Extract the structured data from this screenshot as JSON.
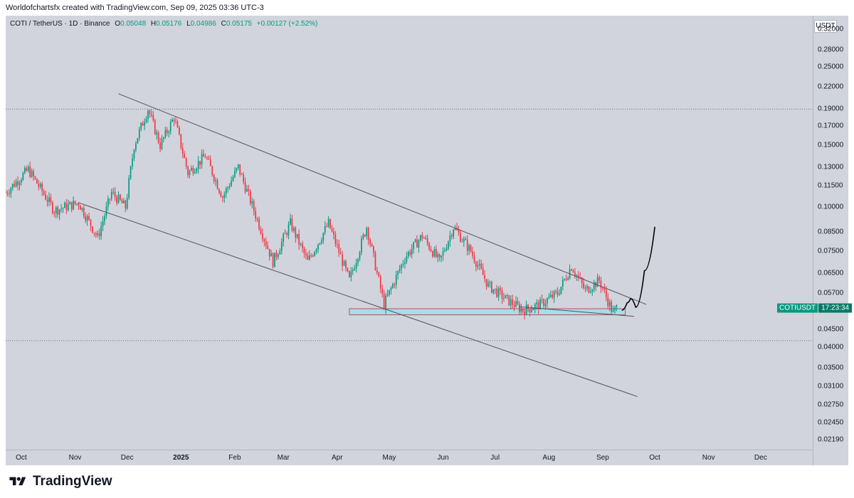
{
  "caption": "Worldofchartsfx created with TradingView.com, Sep 09, 2025 03:36 UTC-3",
  "brand": "TradingView",
  "colors": {
    "up": "#089981",
    "down": "#f23645",
    "background": "#d1d4dc",
    "zone": "#a9dde6"
  },
  "chart_data": {
    "type": "candlestick",
    "title": "COTI / TetherUS · 1D · Binance",
    "symbol_line": {
      "symbol": "COTI / TetherUS · 1D · Binance",
      "o_label": "O",
      "o": "0.05048",
      "h_label": "H",
      "h": "0.05176",
      "l_label": "L",
      "l": "0.04986",
      "c_label": "C",
      "c": "0.05175",
      "change": "+0.00127 (+2.52%)"
    },
    "currency": "USDT",
    "y_scale": "log",
    "ylim": [
      0.0205,
      0.35
    ],
    "y_ticks": [
      "0.32000",
      "0.28000",
      "0.25000",
      "0.22000",
      "0.19000",
      "0.17000",
      "0.15000",
      "0.13000",
      "0.11500",
      "0.10000",
      "0.08500",
      "0.07500",
      "0.06500",
      "0.05700",
      "0.04500",
      "0.04000",
      "0.03500",
      "0.03100",
      "0.02750",
      "0.02450",
      "0.02190"
    ],
    "x_ticks": [
      "Oct",
      "Nov",
      "Dec",
      "2025",
      "Feb",
      "Mar",
      "Apr",
      "May",
      "Jun",
      "Jul",
      "Aug",
      "Sep",
      "Oct",
      "Nov",
      "Dec"
    ],
    "x_range": [
      "2024-09-22",
      "2025-12-31"
    ],
    "anchors": [
      {
        "date": "2024-09-22",
        "price": 0.11
      },
      {
        "date": "2024-10-05",
        "price": 0.128
      },
      {
        "date": "2024-10-20",
        "price": 0.098
      },
      {
        "date": "2024-11-03",
        "price": 0.103
      },
      {
        "date": "2024-11-14",
        "price": 0.082
      },
      {
        "date": "2024-11-22",
        "price": 0.11
      },
      {
        "date": "2024-11-30",
        "price": 0.1
      },
      {
        "date": "2024-12-05",
        "price": 0.15
      },
      {
        "date": "2024-12-13",
        "price": 0.19
      },
      {
        "date": "2024-12-20",
        "price": 0.15
      },
      {
        "date": "2024-12-28",
        "price": 0.18
      },
      {
        "date": "2025-01-05",
        "price": 0.125
      },
      {
        "date": "2025-01-15",
        "price": 0.14
      },
      {
        "date": "2025-01-25",
        "price": 0.107
      },
      {
        "date": "2025-02-03",
        "price": 0.13
      },
      {
        "date": "2025-02-13",
        "price": 0.095
      },
      {
        "date": "2025-02-23",
        "price": 0.07
      },
      {
        "date": "2025-03-05",
        "price": 0.09
      },
      {
        "date": "2025-03-15",
        "price": 0.07
      },
      {
        "date": "2025-03-27",
        "price": 0.09
      },
      {
        "date": "2025-04-08",
        "price": 0.062
      },
      {
        "date": "2025-04-18",
        "price": 0.088
      },
      {
        "date": "2025-04-28",
        "price": 0.053
      },
      {
        "date": "2025-05-10",
        "price": 0.072
      },
      {
        "date": "2025-05-20",
        "price": 0.083
      },
      {
        "date": "2025-05-30",
        "price": 0.07
      },
      {
        "date": "2025-06-07",
        "price": 0.088
      },
      {
        "date": "2025-06-17",
        "price": 0.075
      },
      {
        "date": "2025-06-27",
        "price": 0.06
      },
      {
        "date": "2025-07-07",
        "price": 0.055
      },
      {
        "date": "2025-07-17",
        "price": 0.051
      },
      {
        "date": "2025-07-27",
        "price": 0.053
      },
      {
        "date": "2025-08-06",
        "price": 0.057
      },
      {
        "date": "2025-08-14",
        "price": 0.068
      },
      {
        "date": "2025-08-22",
        "price": 0.058
      },
      {
        "date": "2025-08-30",
        "price": 0.062
      },
      {
        "date": "2025-09-07",
        "price": 0.05
      },
      {
        "date": "2025-09-09",
        "price": 0.0518
      }
    ],
    "lines": [
      {
        "name": "upper-channel",
        "from": {
          "date": "2024-11-26",
          "price": 0.21
        },
        "to": {
          "date": "2025-09-26",
          "price": 0.053
        }
      },
      {
        "name": "lower-channel",
        "from": {
          "date": "2024-11-03",
          "price": 0.103
        },
        "to": {
          "date": "2025-09-21",
          "price": 0.029
        }
      },
      {
        "name": "triangle-base",
        "from": {
          "date": "2025-07-15",
          "price": 0.0522
        },
        "to": {
          "date": "2025-09-19",
          "price": 0.049
        }
      }
    ],
    "horizontal_levels": [
      0.19,
      0.0418
    ],
    "support_zone": {
      "from": "2025-04-08",
      "to": "2025-09-14",
      "low": 0.0495,
      "high": 0.0515
    },
    "projection": [
      {
        "date": "2025-09-12",
        "price": 0.051
      },
      {
        "date": "2025-09-15",
        "price": 0.0535
      },
      {
        "date": "2025-09-17",
        "price": 0.055
      },
      {
        "date": "2025-09-20",
        "price": 0.052
      },
      {
        "date": "2025-09-25",
        "price": 0.066
      },
      {
        "date": "2025-10-01",
        "price": 0.088
      }
    ],
    "last_price_tag": {
      "symbol": "COTIUSDT",
      "time": "17:23:34",
      "price": 0.0518
    }
  }
}
